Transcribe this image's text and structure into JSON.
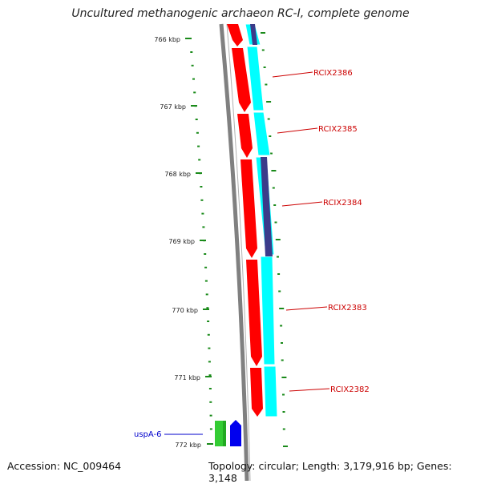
{
  "title": "Uncultured methanogenic archaeon RC-I, complete genome",
  "accession": "Accession: NC_009464",
  "topology": "Topology: circular; Length: 3,179,916 bp; Genes: 3,148",
  "ruler_ticks": [
    "766 kbp",
    "767 kbp",
    "768 kbp",
    "769 kbp",
    "770 kbp",
    "771 kbp",
    "772 kbp"
  ],
  "gene_labels": [
    "RCIX2386",
    "RCIX2385",
    "RCIX2384",
    "RCIX2383",
    "RCIX2382"
  ],
  "feature_label": "uspA-6",
  "colors": {
    "gene_label": "#cc0000",
    "feature_label": "#0000cc",
    "cds_red": "#ff0000",
    "cds_cyan": "#00ffff",
    "cds_navy": "#3b3b8a",
    "ruler": "#1a8a1a",
    "backbone": "#808080",
    "green_block": "#33cc33",
    "blue_block": "#0000ee"
  }
}
